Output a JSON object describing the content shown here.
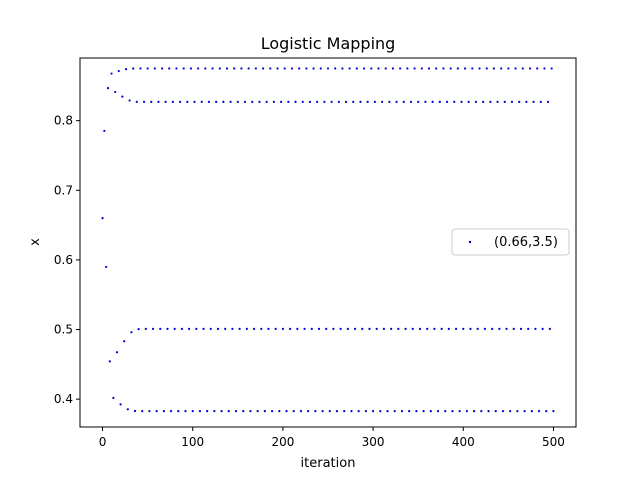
{
  "chart_data": {
    "type": "scatter",
    "title": "Logistic Mapping",
    "xlabel": "iteration",
    "ylabel": "x",
    "xlim": [
      -25,
      525
    ],
    "ylim": [
      0.36,
      0.89
    ],
    "xticks": [
      0,
      100,
      200,
      300,
      400,
      500
    ],
    "yticks": [
      0.4,
      0.5,
      0.6,
      0.7,
      0.8
    ],
    "xtick_labels": [
      "0",
      "100",
      "200",
      "300",
      "400",
      "500"
    ],
    "ytick_labels": [
      "0.4",
      "0.5",
      "0.6",
      "0.7",
      "0.8"
    ],
    "grid": false,
    "legend_position": "center-right",
    "marker_color": "#0000cc",
    "series": [
      {
        "name": "(0.66,3.5)",
        "color": "#0000cc",
        "parameters": {
          "x0": 0.66,
          "r": 3.5
        },
        "iterations": [
          0,
          500
        ],
        "x": [
          0,
          500
        ],
        "y": [
          0.66,
          0.5009
        ]
      }
    ]
  }
}
